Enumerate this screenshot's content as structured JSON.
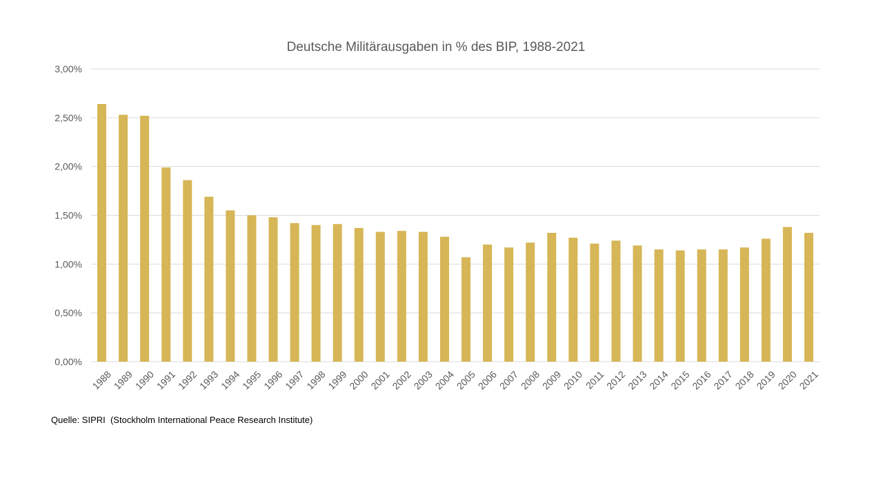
{
  "chart_data": {
    "type": "bar",
    "title": "Deutsche Militärausgaben  in % des BIP, 1988-2021",
    "xlabel": "",
    "ylabel": "",
    "categories": [
      "1988",
      "1989",
      "1990",
      "1991",
      "1992",
      "1993",
      "1994",
      "1995",
      "1996",
      "1997",
      "1998",
      "1999",
      "2000",
      "2001",
      "2002",
      "2003",
      "2004",
      "2005",
      "2006",
      "2007",
      "2008",
      "2009",
      "2010",
      "2011",
      "2012",
      "2013",
      "2014",
      "2015",
      "2016",
      "2017",
      "2018",
      "2019",
      "2020",
      "2021"
    ],
    "values": [
      2.64,
      2.53,
      2.52,
      1.99,
      1.86,
      1.69,
      1.55,
      1.5,
      1.48,
      1.42,
      1.4,
      1.41,
      1.37,
      1.33,
      1.34,
      1.33,
      1.28,
      1.07,
      1.2,
      1.17,
      1.22,
      1.32,
      1.27,
      1.21,
      1.24,
      1.19,
      1.15,
      1.14,
      1.15,
      1.15,
      1.17,
      1.26,
      1.38,
      1.32
    ],
    "ylim": [
      0,
      3
    ],
    "yticks": [
      "0,00%",
      "0,50%",
      "1,00%",
      "1,50%",
      "2,00%",
      "2,50%",
      "3,00%"
    ],
    "grid": true,
    "legend": "none",
    "bar_color": "#D6B656",
    "grid_color": "#D9D9D9",
    "tick_label_color": "#595959"
  },
  "footer": {
    "source": "Quelle: SIPRI  (Stockholm International Peace Research Institute)"
  }
}
